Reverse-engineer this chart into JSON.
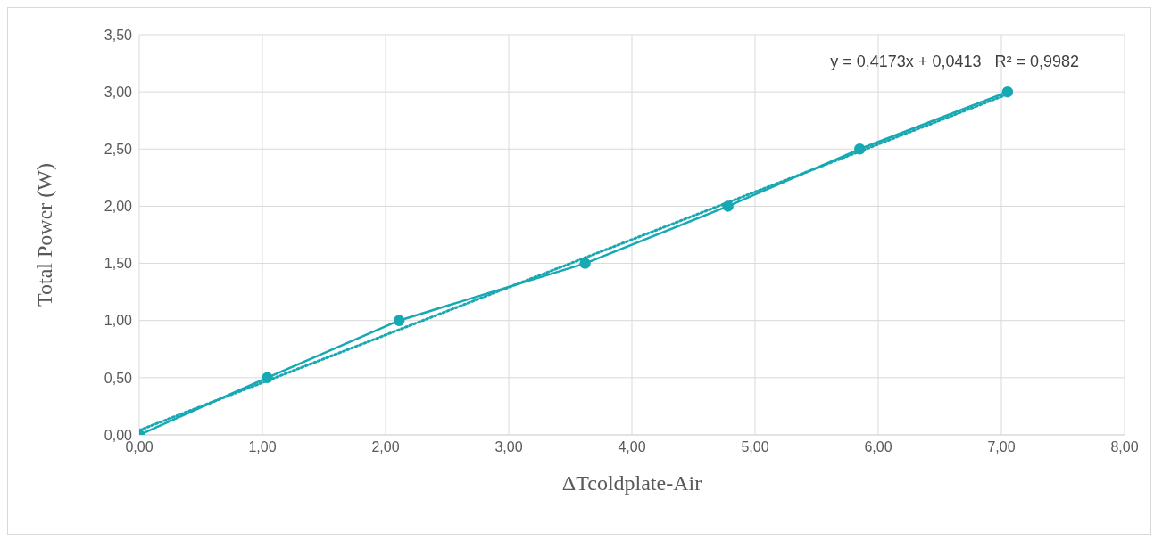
{
  "chart_data": {
    "type": "line",
    "xlabel": "ΔTcoldplate-Air",
    "ylabel": "Total Power (W)",
    "annotations": [
      "y = 0,4173x + 0,0413   R² = 0,9982"
    ],
    "series": [
      {
        "color": "#17a9b3",
        "x": [
          0,
          1.04,
          2.11,
          3.62,
          4.78,
          5.85,
          7.05
        ],
        "values": [
          0,
          0.5,
          1.0,
          1.5,
          2.0,
          2.5,
          3.0
        ],
        "marker": "circle",
        "line_style": "solid"
      },
      {
        "color": "#17a9b3",
        "x": [
          0,
          7.05
        ],
        "values": [
          0.04,
          2.98
        ],
        "marker": "none",
        "line_style": "dotted"
      }
    ],
    "xlim": [
      0,
      8
    ],
    "xticks": [
      {
        "value": 0,
        "label": "0,00"
      },
      {
        "value": 1,
        "label": "1,00"
      },
      {
        "value": 2,
        "label": "2,00"
      },
      {
        "value": 3,
        "label": "3,00"
      },
      {
        "value": 4,
        "label": "4,00"
      },
      {
        "value": 5,
        "label": "5,00"
      },
      {
        "value": 6,
        "label": "6,00"
      },
      {
        "value": 7,
        "label": "7,00"
      },
      {
        "value": 8,
        "label": "8,00"
      }
    ],
    "ylim": [
      0,
      3.5
    ],
    "yticks": [
      {
        "value": 0,
        "label": "0,00"
      },
      {
        "value": 0.5,
        "label": "0,50"
      },
      {
        "value": 1,
        "label": "1,00"
      },
      {
        "value": 1.5,
        "label": "1,50"
      },
      {
        "value": 2,
        "label": "2,00"
      },
      {
        "value": 2.5,
        "label": "2,50"
      },
      {
        "value": 3,
        "label": "3,00"
      },
      {
        "value": 3.5,
        "label": "3,50"
      }
    ],
    "grid": true
  }
}
